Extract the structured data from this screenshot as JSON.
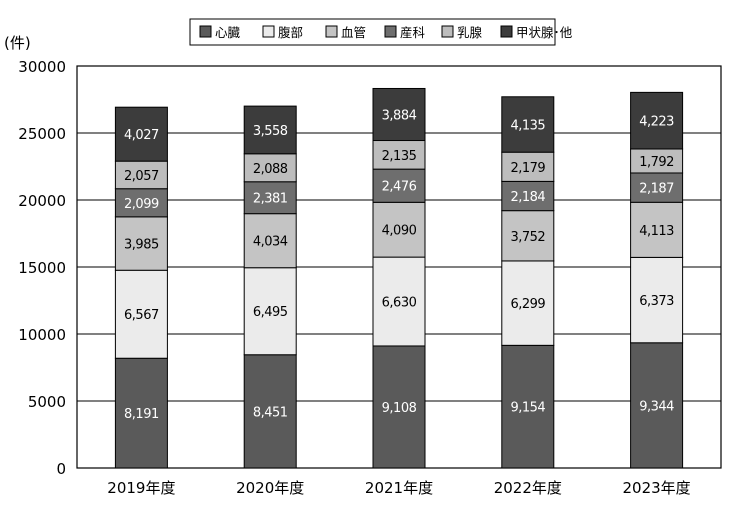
{
  "chart_data": {
    "type": "bar",
    "stacked": true,
    "unit_label": "(件)",
    "categories": [
      "2019年度",
      "2020年度",
      "2021年度",
      "2022年度",
      "2023年度"
    ],
    "ylim": [
      0,
      30000
    ],
    "yticks": [
      0,
      5000,
      10000,
      15000,
      20000,
      25000,
      30000
    ],
    "grid": "horizontal",
    "legend_position": "top",
    "series": [
      {
        "name": "心臓",
        "color": "#5a5a5a",
        "values": [
          8191,
          8451,
          9108,
          9154,
          9344
        ],
        "labels": [
          "8,191",
          "8,451",
          "9,108",
          "9,154",
          "9,344"
        ]
      },
      {
        "name": "腹部",
        "color": "#ebebeb",
        "values": [
          6567,
          6495,
          6630,
          6299,
          6373
        ],
        "labels": [
          "6,567",
          "6,495",
          "6,630",
          "6,299",
          "6,373"
        ]
      },
      {
        "name": "血管",
        "color": "#c4c4c4",
        "values": [
          3985,
          4034,
          4090,
          3752,
          4113
        ],
        "labels": [
          "3,985",
          "4,034",
          "4,090",
          "3,752",
          "4,113"
        ]
      },
      {
        "name": "産科",
        "color": "#6e6e6e",
        "values": [
          2099,
          2381,
          2476,
          2184,
          2187
        ],
        "labels": [
          "2,099",
          "2,381",
          "2,476",
          "2,184",
          "2,187"
        ]
      },
      {
        "name": "乳腺",
        "color": "#bdbdbd",
        "values": [
          2057,
          2088,
          2135,
          2179,
          1792
        ],
        "labels": [
          "2,057",
          "2,088",
          "2,135",
          "2,179",
          "1,792"
        ]
      },
      {
        "name": "甲状腺･他",
        "color": "#3c3c3c",
        "values": [
          4027,
          3558,
          3884,
          4135,
          4223
        ],
        "labels": [
          "4,027",
          "3,558",
          "3,884",
          "4,135",
          "4,223"
        ]
      }
    ]
  }
}
